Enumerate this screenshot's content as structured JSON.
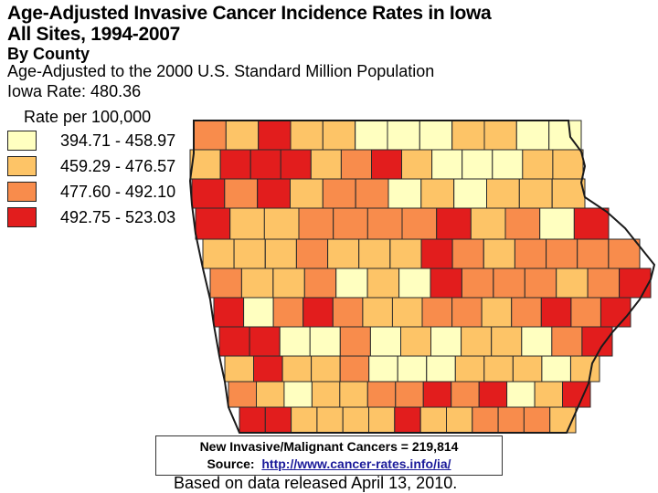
{
  "title_line1": "Age-Adjusted Invasive Cancer Incidence Rates in Iowa",
  "title_line2": "All Sites, 1994-2007",
  "subtitle": "By County",
  "note_line1": "Age-Adjusted to the 2000 U.S. Standard Million Population",
  "note_line2": "Iowa Rate: 480.36",
  "legend": {
    "title": "Rate per 100,000",
    "items": [
      {
        "label": "394.71 - 458.97",
        "color": "#ffffc0"
      },
      {
        "label": "459.29 - 476.57",
        "color": "#fdc467"
      },
      {
        "label": "477.60 - 492.10",
        "color": "#f88c4c"
      },
      {
        "label": "492.75 - 523.03",
        "color": "#e21d1d"
      }
    ]
  },
  "info": {
    "line1": "New Invasive/Malignant Cancers = 219,814",
    "source_label": "Source:",
    "source_url": "http://www.cancer-rates.info/ia/"
  },
  "footnote": "Based on data released April 13, 2010.",
  "map_rows": [
    [
      2,
      1,
      3,
      1,
      1,
      0,
      0,
      0,
      1,
      1,
      0,
      0
    ],
    [
      1,
      3,
      3,
      3,
      1,
      2,
      3,
      1,
      0,
      0,
      0,
      1,
      1
    ],
    [
      3,
      2,
      3,
      1,
      2,
      2,
      0,
      1,
      0,
      1,
      1,
      1
    ],
    [
      3,
      1,
      1,
      2,
      2,
      2,
      2,
      3,
      1,
      2,
      0,
      3
    ],
    [
      1,
      1,
      1,
      2,
      1,
      1,
      1,
      3,
      2,
      1,
      2,
      2,
      2,
      2
    ],
    [
      2,
      1,
      1,
      2,
      0,
      1,
      0,
      3,
      2,
      2,
      2,
      1,
      2,
      3
    ],
    [
      3,
      0,
      2,
      3,
      2,
      1,
      1,
      2,
      2,
      1,
      2,
      3,
      2,
      3
    ],
    [
      3,
      3,
      0,
      0,
      2,
      0,
      1,
      0,
      1,
      1,
      0,
      2,
      3
    ],
    [
      1,
      3,
      1,
      1,
      2,
      0,
      0,
      0,
      1,
      1,
      1,
      0,
      1
    ],
    [
      2,
      1,
      0,
      1,
      1,
      2,
      2,
      3,
      2,
      3,
      0,
      1,
      3
    ],
    [
      3,
      3,
      1,
      1,
      1,
      1,
      3,
      1,
      1,
      2,
      2,
      2,
      1
    ]
  ]
}
